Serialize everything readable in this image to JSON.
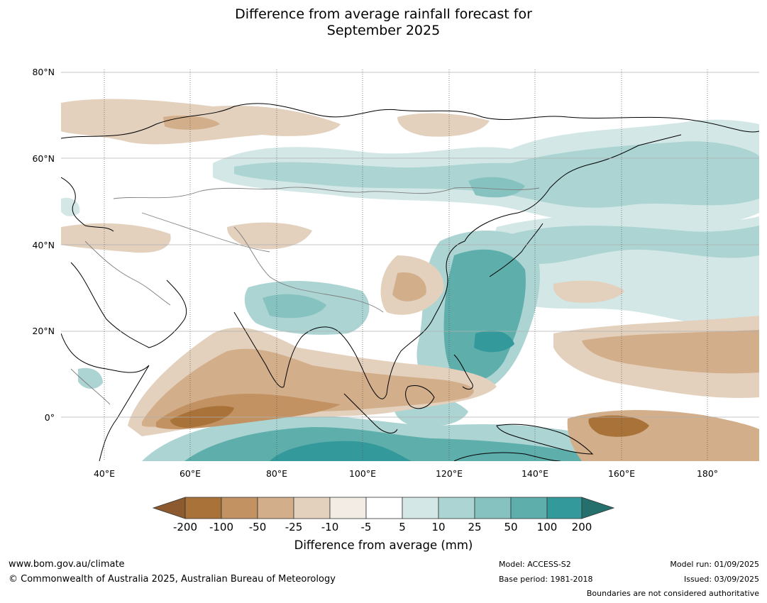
{
  "title": {
    "line1": "Difference from average rainfall forecast for",
    "line2": "September 2025"
  },
  "map": {
    "lat_ticks": [
      "80°N",
      "60°N",
      "40°N",
      "20°N",
      "0°"
    ],
    "lon_ticks": [
      "40°E",
      "60°E",
      "80°E",
      "100°E",
      "120°E",
      "140°E",
      "160°E",
      "180°"
    ],
    "extent": {
      "lon": [
        30,
        191
      ],
      "lat": [
        -10,
        81
      ]
    }
  },
  "colorbar": {
    "title": "Difference from average (mm)",
    "tick_labels": [
      "-200",
      "-100",
      "-50",
      "-25",
      "-10",
      "-5",
      "5",
      "10",
      "25",
      "50",
      "100",
      "200"
    ],
    "colors": [
      "#8c5a2e",
      "#a97239",
      "#c29263",
      "#d2ae8a",
      "#e3d0bd",
      "#f2ece5",
      "#ffffff",
      "#d3e8e6",
      "#abd4d2",
      "#86c2c0",
      "#5eaeac",
      "#33999a",
      "#256f6c"
    ]
  },
  "footer": {
    "website": "www.bom.gov.au/climate",
    "copyright": "© Commonwealth of Australia 2025, Australian Bureau of Meteorology",
    "model": "Model: ACCESS-S2",
    "base_period": "Base period: 1981-2018",
    "model_run": "Model run: 01/09/2025",
    "issued": "Issued: 03/09/2025",
    "boundaries_note": "Boundaries are not considered authoritative"
  }
}
